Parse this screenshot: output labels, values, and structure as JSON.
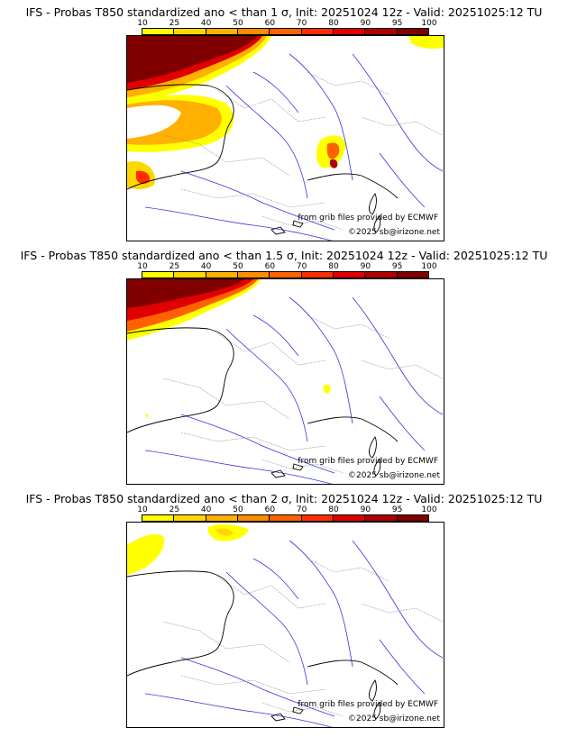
{
  "colorbar": {
    "ticks": [
      "10",
      "25",
      "40",
      "50",
      "60",
      "70",
      "80",
      "90",
      "95",
      "100"
    ],
    "colors": [
      "#ffff00",
      "#ffd700",
      "#ffb000",
      "#ff8c00",
      "#ff6000",
      "#ff2d00",
      "#e00000",
      "#b00000",
      "#800000"
    ]
  },
  "colors": {
    "coast": "#000000",
    "rivers": "#3333dd",
    "borders": "#999999"
  },
  "panels": [
    {
      "title": "IFS - Probas T850  standardized ano < than 1 σ, Init: 20251024 12z - Valid: 20251025:12 TU",
      "source_credit": "from grib files provided by ECMWF",
      "copyright": "©2025 sb@irizone.net"
    },
    {
      "title": "IFS - Probas T850  standardized ano < than 1.5 σ, Init: 20251024 12z - Valid: 20251025:12 TU",
      "source_credit": "from grib files provided by ECMWF",
      "copyright": "©2025 sb@irizone.net"
    },
    {
      "title": "IFS - Probas T850  standardized ano < than 2 σ, Init: 20251024 12z - Valid: 20251025:12 TU",
      "source_credit": "from grib files provided by ECMWF",
      "copyright": "©2025 sb@irizone.net"
    }
  ]
}
